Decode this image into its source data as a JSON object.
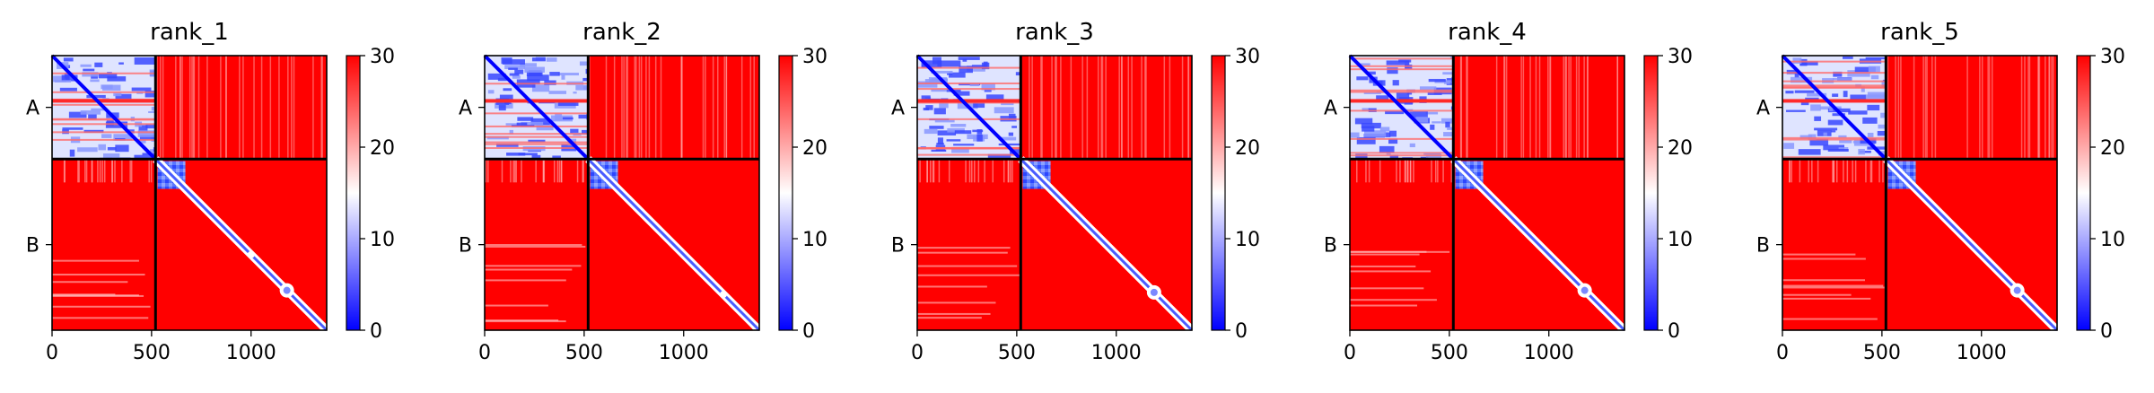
{
  "chart_data": {
    "type": "heatmap",
    "description_note": "",
    "colormap": {
      "low": "#0000ff",
      "mid": "#ffffff",
      "high": "#ff0000"
    },
    "colorbar": {
      "vmin": 0,
      "vmax": 30,
      "ticks": [
        0,
        10,
        20,
        30
      ]
    },
    "axis_extent": [
      0,
      1380
    ],
    "chain_boundary": 520,
    "x_ticks": [
      0,
      500,
      1000
    ],
    "y_ticks": [
      {
        "label": "A",
        "center": 260
      },
      {
        "label": "B",
        "center": 950
      }
    ],
    "panels": [
      {
        "title": "rank_1",
        "features": [
          {
            "at": 1000,
            "kind": "dot"
          },
          {
            "at": 1180,
            "kind": "blob"
          }
        ]
      },
      {
        "title": "rank_2",
        "features": [
          {
            "at": 1200,
            "kind": "dot"
          }
        ]
      },
      {
        "title": "rank_3",
        "features": [
          {
            "at": 1190,
            "kind": "blob"
          }
        ]
      },
      {
        "title": "rank_4",
        "features": [
          {
            "at": 1180,
            "kind": "blob"
          }
        ]
      },
      {
        "title": "rank_5",
        "features": [
          {
            "at": 1180,
            "kind": "blob"
          }
        ]
      }
    ]
  }
}
